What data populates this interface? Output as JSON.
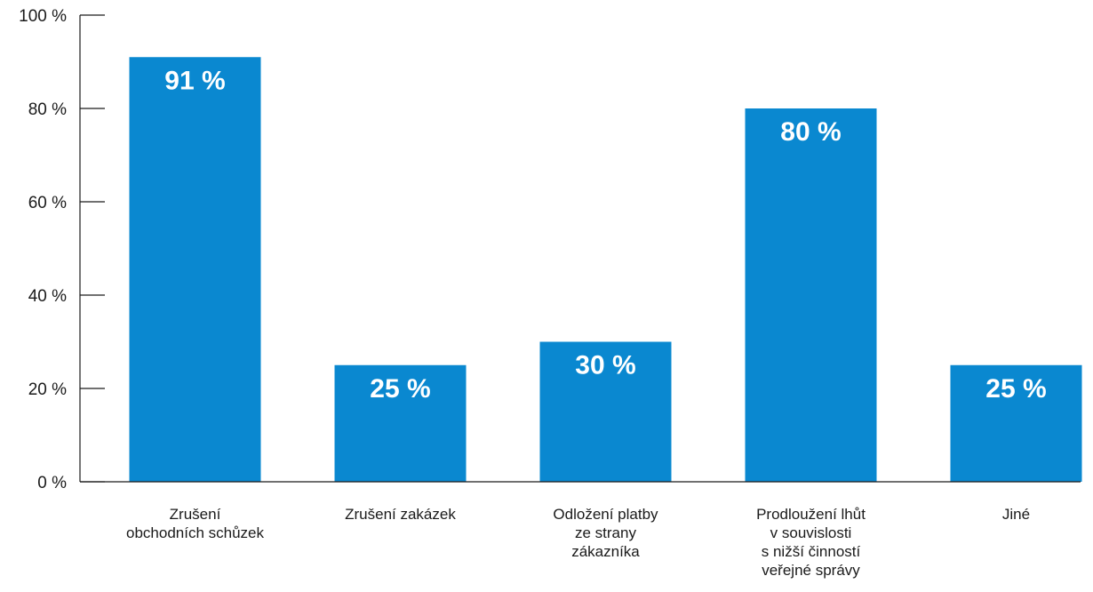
{
  "chart_data": {
    "type": "bar",
    "categories": [
      [
        "Zrušení",
        "obchodních schůzek"
      ],
      [
        "Zrušení zakázek"
      ],
      [
        "Odložení platby",
        "ze strany",
        "zákazníka"
      ],
      [
        "Prodloužení lhůt",
        "v souvislosti",
        "s nižší činností",
        "veřejné správy"
      ],
      [
        "Jiné"
      ]
    ],
    "values": [
      91,
      25,
      30,
      80,
      25
    ],
    "data_labels": [
      "91 %",
      "25 %",
      "30 %",
      "80 %",
      "25 %"
    ],
    "y_ticks": [
      0,
      20,
      40,
      60,
      80,
      100
    ],
    "y_tick_labels": [
      "0 %",
      "20 %",
      "40 %",
      "60 %",
      "80 %",
      "100 %"
    ],
    "ylim": [
      0,
      100
    ],
    "title": "",
    "xlabel": "",
    "ylabel": "",
    "grid": false,
    "bar_color": "#0a88d0",
    "label_color": "#ffffff",
    "axis_color": "#1a1a1a"
  }
}
